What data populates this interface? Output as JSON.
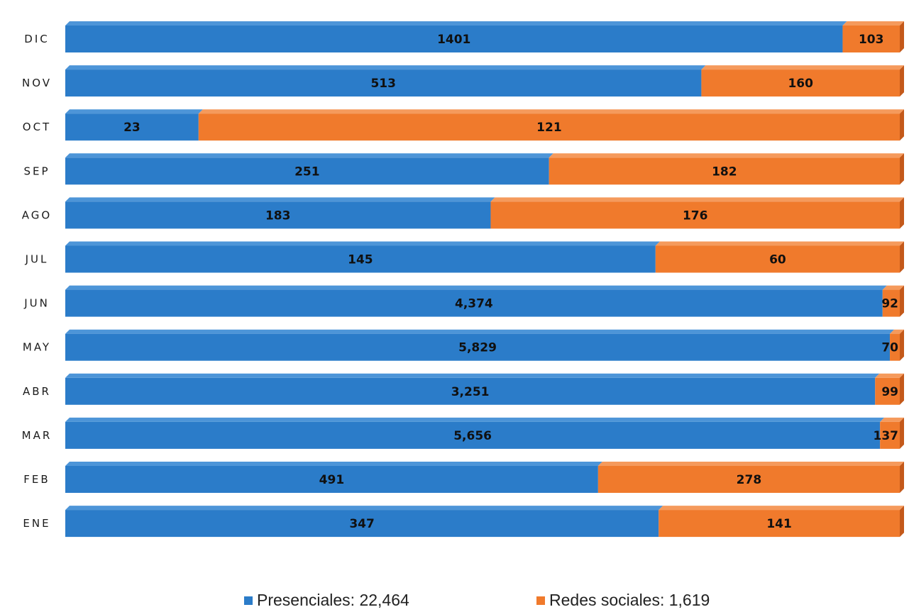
{
  "colors": {
    "presenciales": "#2b7cc9",
    "redes": "#f07a2c"
  },
  "legend": {
    "presenciales": "Presenciales: 22,464",
    "redes": "Redes sociales: 1,619"
  },
  "chart_data": {
    "type": "bar",
    "orientation": "horizontal",
    "stacking": "percent",
    "categories": [
      "DIC",
      "NOV",
      "OCT",
      "SEP",
      "AGO",
      "JUL",
      "JUN",
      "MAY",
      "ABR",
      "MAR",
      "FEB",
      "ENE"
    ],
    "series": [
      {
        "name": "Presenciales",
        "values": [
          1401,
          513,
          23,
          251,
          183,
          145,
          4374,
          5829,
          3251,
          5656,
          491,
          347
        ],
        "labels": [
          "1401",
          "513",
          "23",
          "251",
          "183",
          "145",
          "4,374",
          "5,829",
          "3,251",
          "5,656",
          "491",
          "347"
        ]
      },
      {
        "name": "Redes sociales",
        "values": [
          103,
          160,
          121,
          182,
          176,
          60,
          92,
          70,
          99,
          137,
          278,
          141
        ],
        "labels": [
          "103",
          "160",
          "121",
          "182",
          "176",
          "60",
          "92",
          "70",
          "99",
          "137",
          "278",
          "141"
        ]
      }
    ],
    "legend_position": "bottom",
    "grid": false
  }
}
